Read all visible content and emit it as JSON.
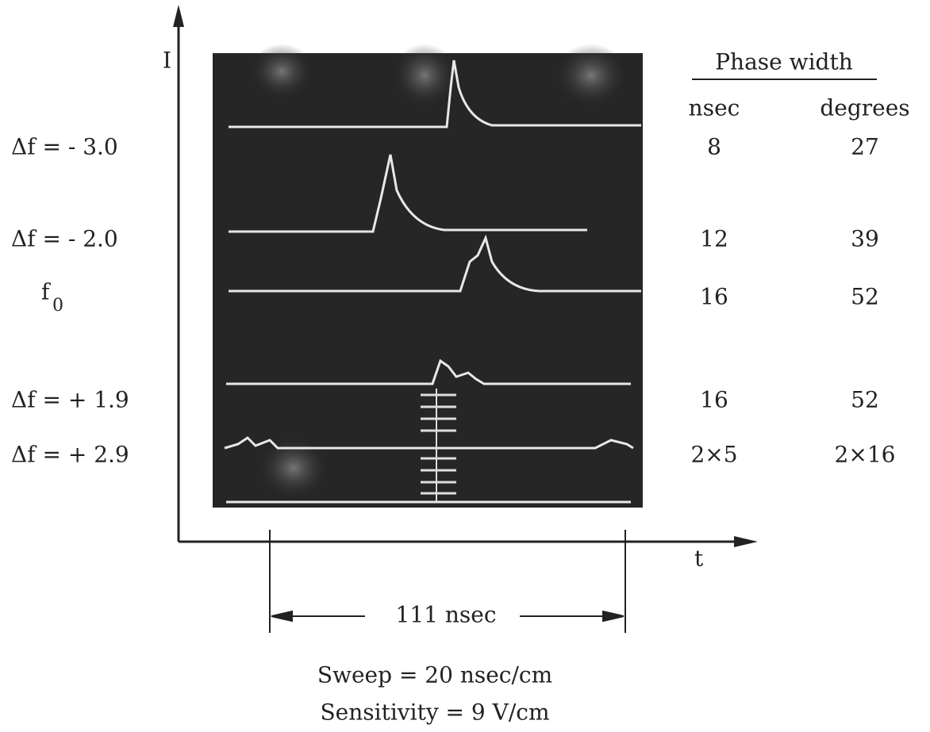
{
  "axis_labels": {
    "y": "I",
    "x": "t"
  },
  "rows": [
    {
      "label": "Δf = - 3.0",
      "nsec": "8",
      "degrees": "27"
    },
    {
      "label": "Δf = - 2.0",
      "nsec": "12",
      "degrees": "39"
    },
    {
      "label": {
        "base": "f",
        "sub": "0"
      },
      "nsec": "16",
      "degrees": "52"
    },
    {
      "label": "Δf = + 1.9",
      "nsec": "16",
      "degrees": "52"
    },
    {
      "label": "Δf = + 2.9",
      "nsec": "2×5",
      "degrees": "2×16"
    }
  ],
  "table": {
    "title": "Phase width",
    "columns": [
      "nsec",
      "degrees"
    ]
  },
  "dimension": "111 nsec",
  "captions": [
    "Sweep = 20 nsec/cm",
    "Sensitivity = 9 V/cm"
  ]
}
